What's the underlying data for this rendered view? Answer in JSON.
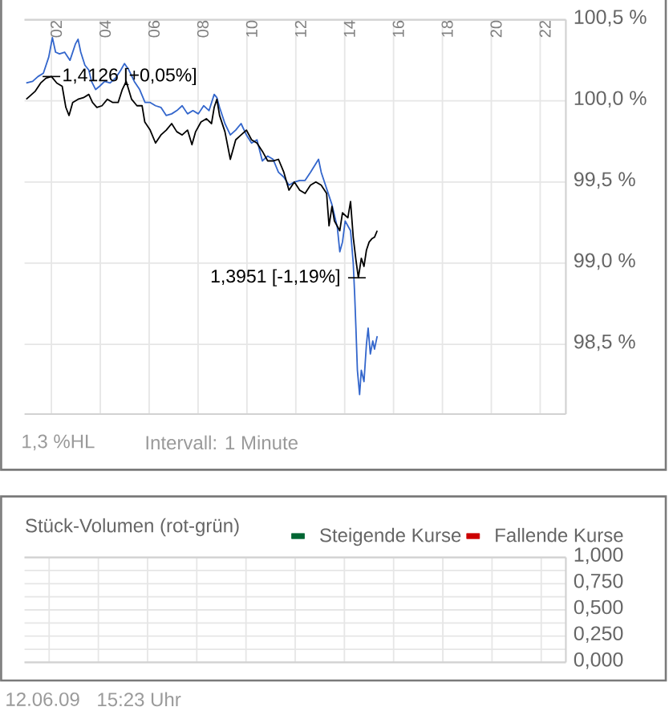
{
  "chart_data": [
    {
      "type": "line",
      "xlim": [
        0.9,
        23.05
      ],
      "ylim": [
        98.07,
        100.5
      ],
      "xticks": [
        {
          "value": 2,
          "label": "02"
        },
        {
          "value": 4,
          "label": "04"
        },
        {
          "value": 6,
          "label": "06"
        },
        {
          "value": 8,
          "label": "08"
        },
        {
          "value": 10,
          "label": "10"
        },
        {
          "value": 12,
          "label": "12"
        },
        {
          "value": 14,
          "label": "14"
        },
        {
          "value": 16,
          "label": "16"
        },
        {
          "value": 18,
          "label": "18"
        },
        {
          "value": 20,
          "label": "20"
        },
        {
          "value": 22,
          "label": "22"
        }
      ],
      "yticks": [
        {
          "value": 98.5,
          "label": "98,5 %"
        },
        {
          "value": 99.0,
          "label": "99,0 %"
        },
        {
          "value": 99.5,
          "label": "99,5 %"
        },
        {
          "value": 100.0,
          "label": "100,0 %"
        },
        {
          "value": 100.5,
          "label": "100,5 %"
        }
      ],
      "grid": true,
      "series": [
        {
          "color": "#3366cc",
          "x": [
            0.97,
            1.23,
            1.45,
            1.67,
            1.89,
            2.04,
            2.17,
            2.33,
            2.54,
            2.76,
            2.98,
            3.09,
            3.2,
            3.37,
            3.53,
            3.64,
            3.81,
            3.97,
            4.18,
            4.4,
            4.62,
            4.84,
            4.99,
            5.17,
            5.39,
            5.61,
            5.83,
            6.04,
            6.26,
            6.48,
            6.7,
            6.92,
            7.13,
            7.35,
            7.57,
            7.79,
            8.01,
            8.23,
            8.45,
            8.66,
            8.77,
            8.88,
            9.1,
            9.32,
            9.54,
            9.76,
            9.98,
            10.19,
            10.41,
            10.63,
            10.85,
            11.07,
            11.29,
            11.51,
            11.72,
            11.94,
            12.16,
            12.38,
            12.6,
            12.93,
            13.04,
            13.26,
            13.48,
            13.7,
            13.8,
            13.91,
            14.02,
            14.24,
            14.35,
            14.41,
            14.46,
            14.52,
            14.61,
            14.68,
            14.79,
            14.89,
            14.96,
            15.05,
            15.15,
            15.22,
            15.33
          ],
          "values": [
            100.11,
            100.12,
            100.15,
            100.17,
            100.27,
            100.39,
            100.3,
            100.29,
            100.3,
            100.25,
            100.35,
            100.38,
            100.3,
            100.22,
            100.19,
            100.12,
            100.07,
            100.09,
            100.12,
            100.11,
            100.14,
            100.19,
            100.23,
            100.19,
            100.12,
            100.07,
            99.99,
            99.99,
            99.97,
            99.96,
            99.91,
            99.92,
            99.94,
            99.97,
            99.92,
            99.94,
            99.92,
            99.97,
            99.94,
            100.04,
            100.02,
            99.96,
            99.86,
            99.79,
            99.82,
            99.86,
            99.79,
            99.74,
            99.76,
            99.63,
            99.66,
            99.64,
            99.56,
            99.53,
            99.48,
            99.5,
            99.51,
            99.51,
            99.56,
            99.64,
            99.56,
            99.46,
            99.36,
            99.22,
            99.07,
            99.13,
            99.26,
            99.2,
            99.0,
            98.8,
            98.6,
            98.34,
            98.19,
            98.34,
            98.27,
            98.5,
            98.6,
            98.44,
            98.52,
            98.47,
            98.55
          ]
        },
        {
          "color": "#000000",
          "x": [
            0.97,
            1.12,
            1.34,
            1.56,
            1.78,
            2.0,
            2.22,
            2.44,
            2.59,
            2.72,
            2.87,
            3.09,
            3.31,
            3.53,
            3.68,
            3.86,
            4.07,
            4.29,
            4.51,
            4.73,
            4.9,
            5.06,
            5.28,
            5.5,
            5.71,
            5.82,
            6.04,
            6.26,
            6.48,
            6.7,
            6.92,
            7.13,
            7.35,
            7.57,
            7.75,
            7.9,
            8.12,
            8.34,
            8.55,
            8.66,
            8.77,
            8.88,
            9.1,
            9.32,
            9.54,
            9.76,
            9.98,
            10.19,
            10.41,
            10.63,
            10.85,
            11.07,
            11.29,
            11.51,
            11.72,
            11.94,
            12.16,
            12.38,
            12.6,
            12.82,
            13.04,
            13.26,
            13.36,
            13.48,
            13.58,
            13.8,
            13.91,
            14.13,
            14.24,
            14.35,
            14.46,
            14.56,
            14.68,
            14.79,
            14.89,
            15.0,
            15.11,
            15.22,
            15.33
          ],
          "values": [
            100.01,
            100.03,
            100.06,
            100.11,
            100.14,
            100.15,
            100.11,
            100.09,
            99.96,
            99.91,
            99.99,
            100.01,
            100.02,
            100.04,
            99.99,
            99.96,
            99.97,
            100.01,
            99.99,
            99.99,
            100.07,
            100.12,
            100.01,
            99.97,
            99.97,
            99.87,
            99.82,
            99.74,
            99.79,
            99.82,
            99.86,
            99.81,
            99.79,
            99.82,
            99.73,
            99.81,
            99.87,
            99.89,
            99.86,
            99.96,
            100.01,
            99.91,
            99.81,
            99.64,
            99.76,
            99.79,
            99.82,
            99.76,
            99.74,
            99.69,
            99.63,
            99.63,
            99.64,
            99.56,
            99.45,
            99.5,
            99.45,
            99.43,
            99.48,
            99.5,
            99.48,
            99.43,
            99.23,
            99.35,
            99.26,
            99.2,
            99.31,
            99.28,
            99.38,
            99.16,
            99.02,
            98.91,
            99.03,
            98.98,
            99.08,
            99.13,
            99.15,
            99.16,
            99.2
          ]
        }
      ],
      "annotations": [
        {
          "text": "1,4126 [+0,05%]",
          "x": 2.0,
          "y": 100.15
        },
        {
          "text": "1,3951 [-1,19%]",
          "x": 14.5,
          "y": 98.91
        },
        "1,3 %HL",
        "Intervall: 1 Minute"
      ]
    },
    {
      "type": "bar",
      "title": "Stück-Volumen (rot-grün)",
      "categories": [
        null,
        null,
        null,
        null,
        null,
        null,
        null,
        null,
        null,
        null,
        null
      ],
      "ylim": [
        0,
        1
      ],
      "yticks": [
        {
          "value": 0,
          "label": "0,000"
        },
        {
          "value": 0.125,
          "label": null
        },
        {
          "value": 0.25,
          "label": "0,250"
        },
        {
          "value": 0.375,
          "label": null
        },
        {
          "value": 0.5,
          "label": "0,500"
        },
        {
          "value": 0.625,
          "label": null
        },
        {
          "value": 0.75,
          "label": "0,750"
        },
        {
          "value": 0.875,
          "label": null
        },
        {
          "value": 1.0,
          "label": "1,000"
        }
      ],
      "tick_labels": "y",
      "grid": true,
      "legend": "top right",
      "series": [
        {
          "name": "Steigende Kurse",
          "color": "#006633",
          "values": [
            null,
            null,
            null,
            null,
            null,
            null,
            null,
            null,
            null,
            null,
            null
          ]
        },
        {
          "name": "Fallende Kurse",
          "color": "#cc0000",
          "values": [
            null,
            null,
            null,
            null,
            null,
            null,
            null,
            null,
            null,
            null,
            null
          ]
        }
      ],
      "annotations": [
        "12.06.09",
        "15:23 Uhr"
      ]
    }
  ]
}
